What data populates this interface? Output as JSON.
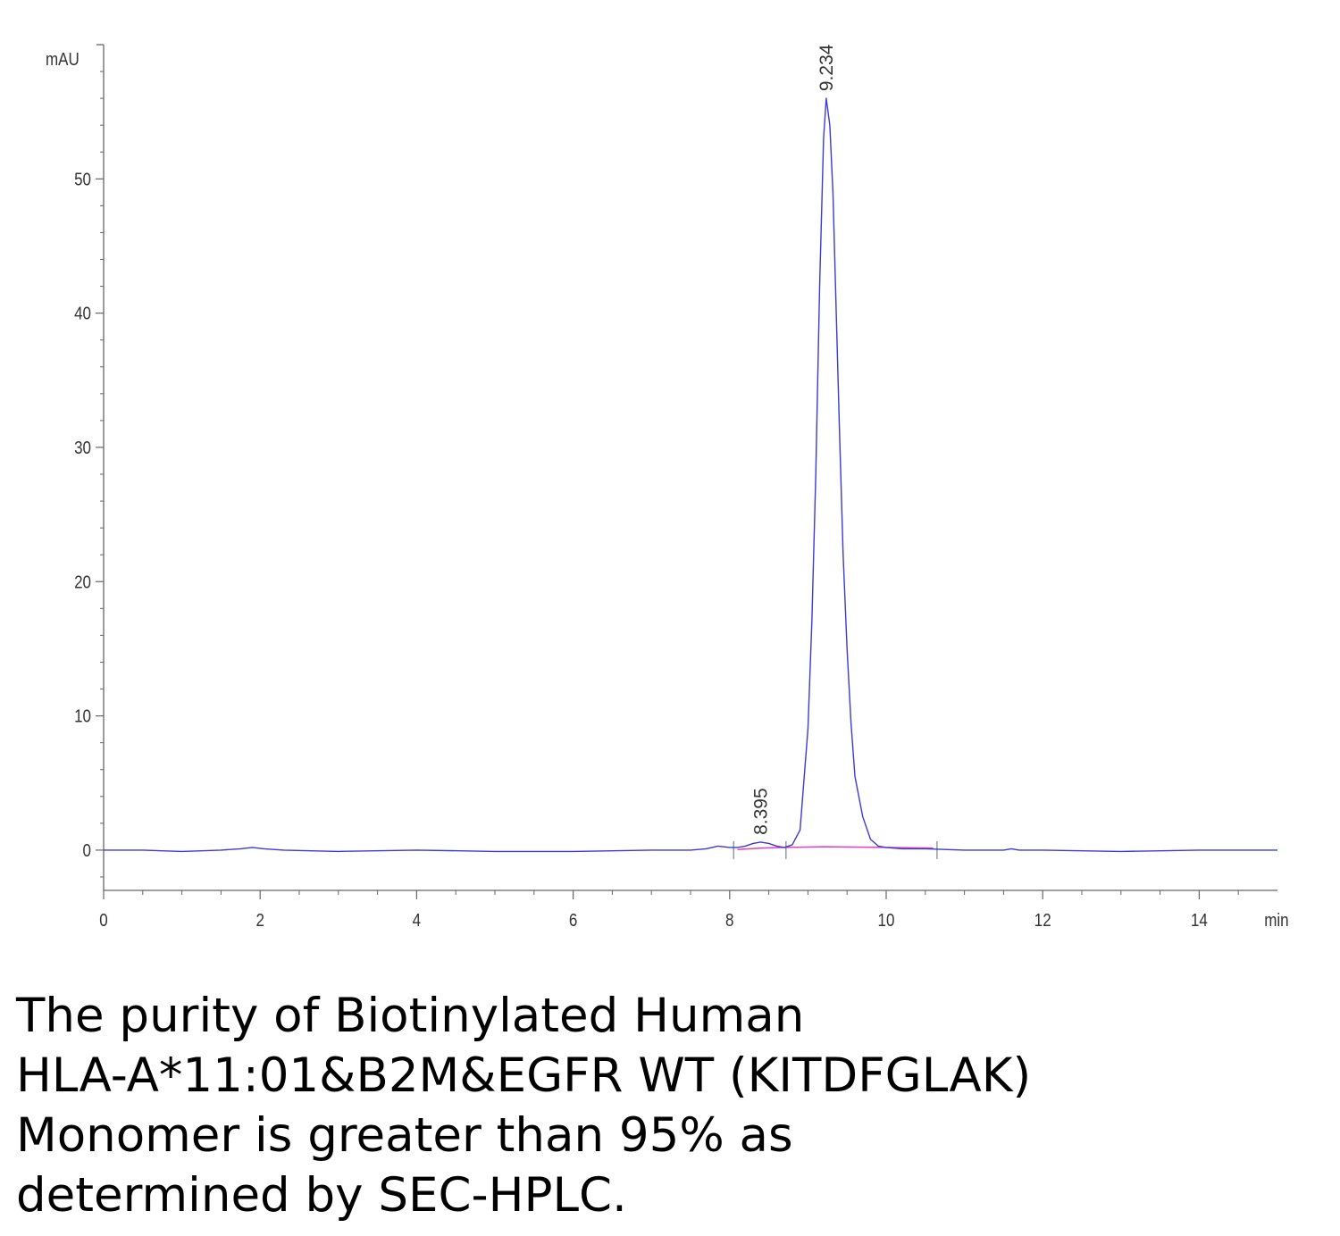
{
  "chart_data": {
    "type": "line",
    "title": "",
    "xlabel": "min",
    "ylabel": "mAU",
    "xlim": [
      0,
      15
    ],
    "ylim": [
      -3,
      60
    ],
    "x_ticks": [
      0,
      2,
      4,
      6,
      8,
      10,
      12,
      14
    ],
    "y_ticks": [
      0,
      10,
      20,
      30,
      40,
      50
    ],
    "grid": false,
    "legend": "none",
    "colors": {
      "signal": "#3a3ad6",
      "baseline": "#e040c0",
      "axis": "#666666"
    },
    "series": [
      {
        "x": [
          0,
          0.5,
          1.0,
          1.5,
          1.75,
          1.9,
          2.05,
          2.3,
          3.0,
          4.0,
          5.0,
          6.0,
          7.0,
          7.5,
          7.7,
          7.85,
          8.0,
          8.1,
          8.2,
          8.3,
          8.395,
          8.5,
          8.6,
          8.7,
          8.8,
          8.9,
          9.0,
          9.05,
          9.1,
          9.15,
          9.2,
          9.234,
          9.28,
          9.32,
          9.4,
          9.45,
          9.5,
          9.55,
          9.6,
          9.7,
          9.8,
          9.9,
          10.0,
          10.2,
          10.5,
          11.0,
          11.5,
          11.6,
          11.7,
          12.0,
          13.0,
          14.0,
          15.0
        ],
        "values": [
          0,
          0,
          -0.1,
          0,
          0.1,
          0.2,
          0.1,
          0,
          -0.1,
          0,
          -0.1,
          -0.1,
          0,
          0,
          0.1,
          0.3,
          0.2,
          0.2,
          0.3,
          0.5,
          0.6,
          0.5,
          0.3,
          0.2,
          0.4,
          1.5,
          9,
          17,
          28,
          42,
          53,
          56,
          54,
          49,
          32,
          22,
          15,
          9.5,
          5.5,
          2.5,
          0.8,
          0.3,
          0.2,
          0.1,
          0.1,
          0,
          0,
          0.1,
          0,
          0,
          -0.1,
          0,
          0
        ]
      }
    ],
    "baseline": {
      "x": [
        8.1,
        8.4,
        8.7,
        9.2,
        10.0,
        10.6
      ],
      "values": [
        0.05,
        0.15,
        0.2,
        0.25,
        0.2,
        0.15
      ]
    },
    "peak_labels": [
      {
        "x": 8.395,
        "y": 0.6,
        "text": "8.395"
      },
      {
        "x": 9.234,
        "y": 56,
        "text": "9.234"
      }
    ]
  },
  "caption": {
    "lines": [
      "The purity of Biotinylated Human",
      "HLA-A*11:01&B2M&EGFR WT (KITDFGLAK)",
      "Monomer is greater than 95% as",
      "determined by SEC-HPLC."
    ]
  }
}
